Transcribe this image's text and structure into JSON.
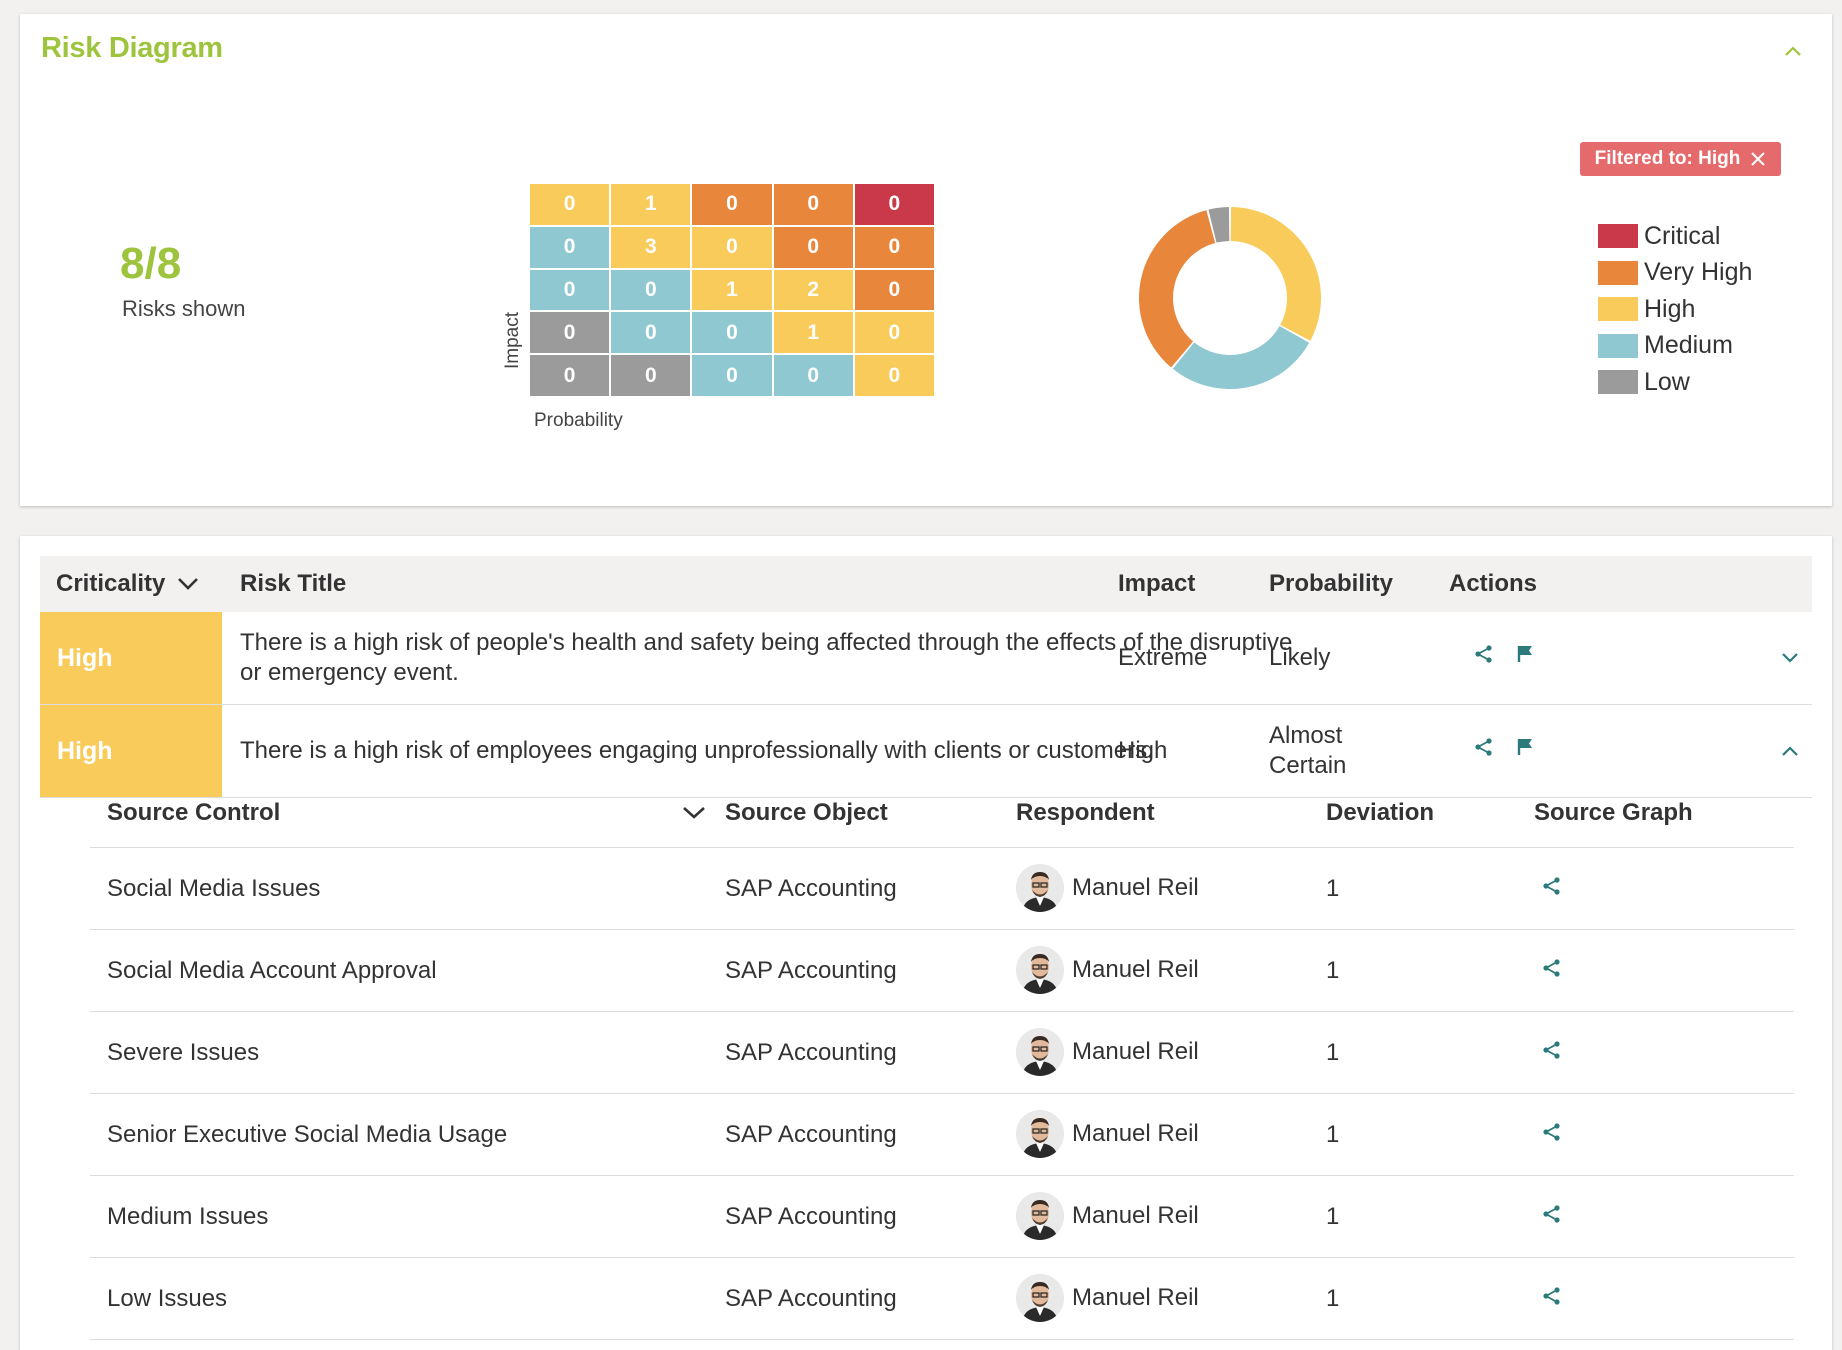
{
  "diagram": {
    "title": "Risk Diagram",
    "count_value": "8/8",
    "count_label": "Risks shown",
    "axis_impact": "Impact",
    "axis_probability": "Probability",
    "filter_label": "Filtered to: High",
    "matrix": [
      [
        {
          "v": "0",
          "level": "high"
        },
        {
          "v": "1",
          "level": "high"
        },
        {
          "v": "0",
          "level": "very_high"
        },
        {
          "v": "0",
          "level": "very_high"
        },
        {
          "v": "0",
          "level": "critical"
        }
      ],
      [
        {
          "v": "0",
          "level": "medium"
        },
        {
          "v": "3",
          "level": "high"
        },
        {
          "v": "0",
          "level": "high"
        },
        {
          "v": "0",
          "level": "very_high"
        },
        {
          "v": "0",
          "level": "very_high"
        }
      ],
      [
        {
          "v": "0",
          "level": "medium"
        },
        {
          "v": "0",
          "level": "medium"
        },
        {
          "v": "1",
          "level": "high"
        },
        {
          "v": "2",
          "level": "high"
        },
        {
          "v": "0",
          "level": "very_high"
        }
      ],
      [
        {
          "v": "0",
          "level": "low"
        },
        {
          "v": "0",
          "level": "medium"
        },
        {
          "v": "0",
          "level": "medium"
        },
        {
          "v": "1",
          "level": "high"
        },
        {
          "v": "0",
          "level": "high"
        }
      ],
      [
        {
          "v": "0",
          "level": "low"
        },
        {
          "v": "0",
          "level": "low"
        },
        {
          "v": "0",
          "level": "medium"
        },
        {
          "v": "0",
          "level": "medium"
        },
        {
          "v": "0",
          "level": "high"
        }
      ]
    ],
    "legend": [
      {
        "key": "critical",
        "label": "Critical",
        "color": "#c9394a"
      },
      {
        "key": "very_high",
        "label": "Very High",
        "color": "#e8873c"
      },
      {
        "key": "high",
        "label": "High",
        "color": "#f8cb5a"
      },
      {
        "key": "medium",
        "label": "Medium",
        "color": "#8fc8d0"
      },
      {
        "key": "low",
        "label": "Low",
        "color": "#9b9b9b"
      }
    ]
  },
  "chart_data": {
    "type": "pie",
    "categories": [
      "High",
      "Medium",
      "Very High",
      "Low"
    ],
    "values": [
      33,
      28,
      35,
      4
    ],
    "colors": [
      "#f8cb5a",
      "#8fc8d0",
      "#e8873c",
      "#9b9b9b"
    ]
  },
  "table": {
    "headers": {
      "criticality": "Criticality",
      "title": "Risk Title",
      "impact": "Impact",
      "probability": "Probability",
      "actions": "Actions"
    },
    "rows": [
      {
        "criticality": "High",
        "title": "There is a high risk of people's health and safety being affected through the effects of the disruptive or emergency event.",
        "impact": "Extreme",
        "probability": "Likely"
      },
      {
        "criticality": "High",
        "title": "There is a high risk of employees engaging unprofessionally with clients or customers.",
        "impact": "High",
        "probability": "Almost Certain"
      }
    ],
    "sub": {
      "headers": {
        "control": "Source Control",
        "object": "Source Object",
        "respondent": "Respondent",
        "deviation": "Deviation",
        "graph": "Source Graph"
      },
      "rows": [
        {
          "control": "Social Media Issues",
          "object": "SAP Accounting",
          "respondent": "Manuel Reil",
          "deviation": "1"
        },
        {
          "control": "Social Media Account Approval",
          "object": "SAP Accounting",
          "respondent": "Manuel Reil",
          "deviation": "1"
        },
        {
          "control": "Severe Issues",
          "object": "SAP Accounting",
          "respondent": "Manuel Reil",
          "deviation": "1"
        },
        {
          "control": "Senior Executive Social Media Usage",
          "object": "SAP Accounting",
          "respondent": "Manuel Reil",
          "deviation": "1"
        },
        {
          "control": "Medium Issues",
          "object": "SAP Accounting",
          "respondent": "Manuel Reil",
          "deviation": "1"
        },
        {
          "control": "Low Issues",
          "object": "SAP Accounting",
          "respondent": "Manuel Reil",
          "deviation": "1"
        }
      ]
    }
  },
  "icons": {
    "collapse": "chevron-up-icon",
    "sort": "chevron-down-icon",
    "share": "share-icon",
    "flag": "flag-icon",
    "close": "close-icon",
    "accent": "#2c7a7b"
  }
}
